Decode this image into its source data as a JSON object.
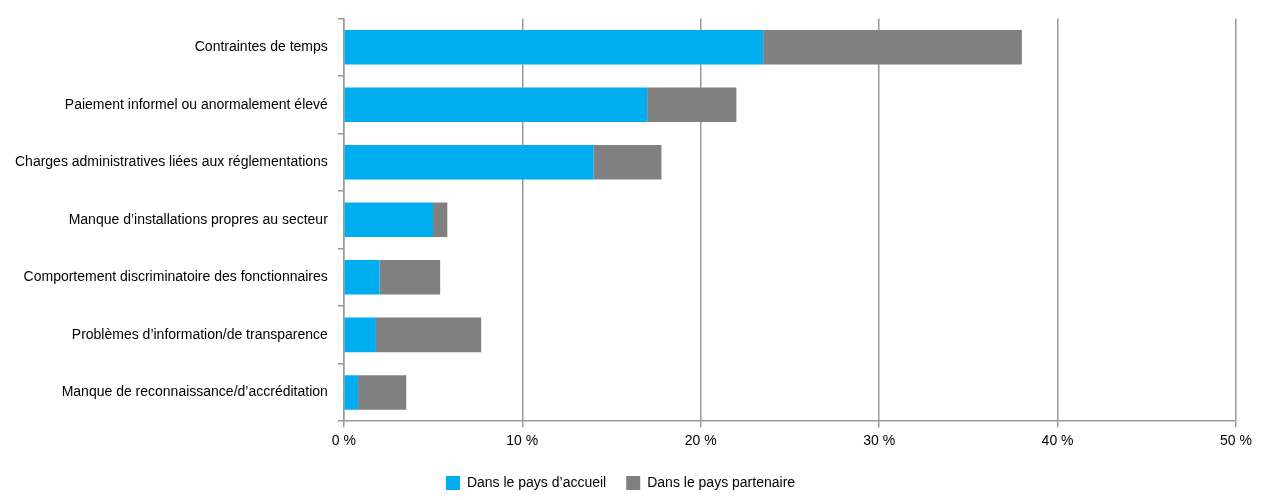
{
  "chart_data": {
    "type": "bar",
    "orientation": "horizontal",
    "stacked": true,
    "categories": [
      "Contraintes de temps",
      "Paiement informel ou anormalement élevé",
      "Charges administratives liées aux réglementations",
      "Manque d’installations propres au secteur",
      "Comportement discriminatoire des fonctionnaires",
      "Problèmes d’information/de transparence",
      "Manque de reconnaissance/d’accréditation"
    ],
    "series": [
      {
        "name": "Dans le pays d’accueil",
        "color": "#00aeef",
        "values": [
          23.5,
          17.0,
          14.0,
          5.0,
          2.0,
          1.8,
          0.8
        ]
      },
      {
        "name": "Dans le pays partenaire",
        "color": "#808080",
        "values": [
          14.5,
          5.0,
          3.8,
          0.8,
          3.4,
          5.9,
          2.7
        ]
      }
    ],
    "xlim": [
      0,
      50
    ],
    "xticks": [
      {
        "value": 0,
        "label": "0 %"
      },
      {
        "value": 10,
        "label": "10 %"
      },
      {
        "value": 20,
        "label": "20 %"
      },
      {
        "value": 30,
        "label": "30 %"
      },
      {
        "value": 40,
        "label": "40 %"
      },
      {
        "value": 50,
        "label": "50 %"
      }
    ],
    "grid": "x",
    "legend": "bottom"
  }
}
